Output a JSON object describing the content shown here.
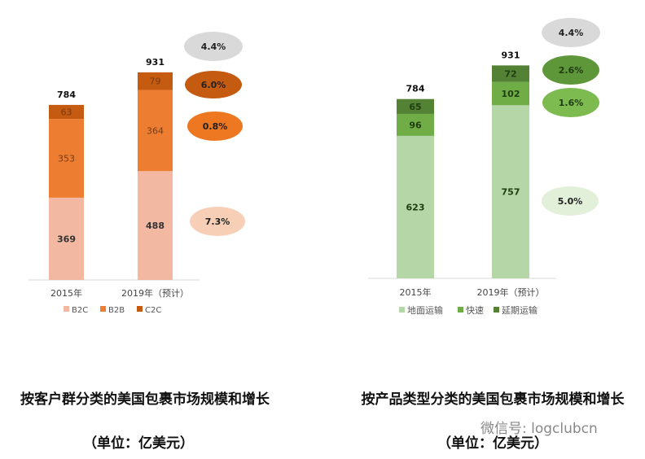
{
  "chart_data": [
    {
      "type": "bar",
      "stacked": true,
      "categories": [
        "2015年",
        "2019年（预计）"
      ],
      "series": [
        {
          "name": "B2C",
          "values": [
            369,
            488
          ],
          "color": "#f2b8a2",
          "growth": "7.3%",
          "growth_color": "#f7cfb6"
        },
        {
          "name": "B2B",
          "values": [
            353,
            364
          ],
          "color": "#ed7d31",
          "growth": "0.8%",
          "growth_color": "#ee7722"
        },
        {
          "name": "C2C",
          "values": [
            63,
            79
          ],
          "color": "#c55a11",
          "growth": "6.0%",
          "growth_color": "#c55a11"
        }
      ],
      "totals": [
        "784",
        "931"
      ],
      "total_growth": "4.4%",
      "total_growth_color": "#d9d9d9",
      "legend_position": "bottom",
      "grid": false,
      "title": "按客户群分类的美国包裹市场规模和增长",
      "subtitle": "（单位：亿美元）"
    },
    {
      "type": "bar",
      "stacked": true,
      "categories": [
        "2015年",
        "2019年（预计）"
      ],
      "series": [
        {
          "name": "地面运输",
          "values": [
            623,
            757
          ],
          "color": "#b5d6a7",
          "growth": "5.0%",
          "growth_color": "#e2efd9"
        },
        {
          "name": "快速",
          "values": [
            96,
            102
          ],
          "color": "#70ad47",
          "growth": "1.6%",
          "growth_color": "#7dbb50"
        },
        {
          "name": "延期运输",
          "values": [
            65,
            72
          ],
          "color": "#548235",
          "growth": "2.6%",
          "growth_color": "#5e963a"
        }
      ],
      "totals": [
        "784",
        "931"
      ],
      "total_growth": "4.4%",
      "total_growth_color": "#d9d9d9",
      "legend_position": "bottom",
      "grid": false,
      "title": "按产品类型分类的美国包裹市场规模和增长",
      "subtitle": "（单位：亿美元）"
    }
  ],
  "watermark": "微信号: logclubcn"
}
